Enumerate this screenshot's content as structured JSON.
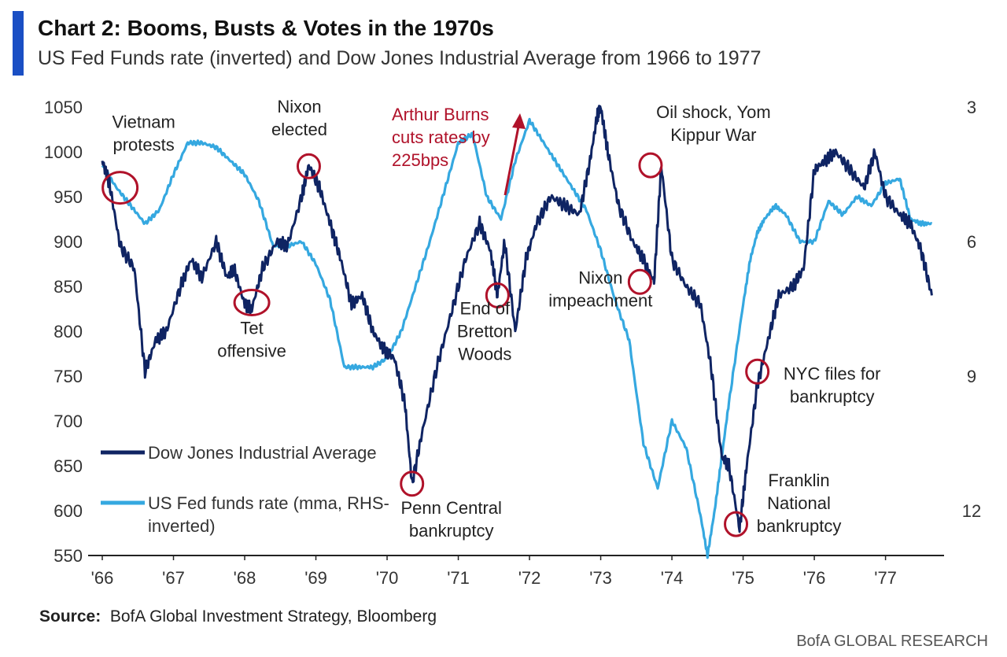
{
  "header": {
    "title": "Chart 2: Booms, Busts & Votes in the 1970s",
    "subtitle": "US Fed Funds rate (inverted) and Dow Jones Industrial Average from 1966 to 1977"
  },
  "colors": {
    "accent": "#1a4fc4",
    "dow": "#0f2463",
    "fed": "#35a8e0",
    "annotation": "#b0122a",
    "axis": "#222222"
  },
  "source": {
    "label": "Source:",
    "text": "BofA Global Investment Strategy, Bloomberg"
  },
  "brand": "BofA GLOBAL RESEARCH",
  "chart_data": {
    "type": "line",
    "title": "Chart 2: Booms, Busts & Votes in the 1970s",
    "x_range": [
      1966.0,
      1977.8
    ],
    "x_ticks": [
      {
        "label": "'66",
        "value": 1966
      },
      {
        "label": "'67",
        "value": 1967
      },
      {
        "label": "'68",
        "value": 1968
      },
      {
        "label": "'69",
        "value": 1969
      },
      {
        "label": "'70",
        "value": 1970
      },
      {
        "label": "'71",
        "value": 1971
      },
      {
        "label": "'72",
        "value": 1972
      },
      {
        "label": "'73",
        "value": 1973
      },
      {
        "label": "'74",
        "value": 1974
      },
      {
        "label": "'75",
        "value": 1975
      },
      {
        "label": "'76",
        "value": 1976
      },
      {
        "label": "'77",
        "value": 1977
      }
    ],
    "left_axis": {
      "ylim": [
        550,
        1050
      ],
      "ticks": [
        550,
        600,
        650,
        700,
        750,
        800,
        850,
        900,
        950,
        1000,
        1050
      ]
    },
    "right_axis": {
      "ylim": [
        3,
        13
      ],
      "inverted": true,
      "ticks": [
        3,
        6,
        9,
        12
      ]
    },
    "series": [
      {
        "name": "Dow Jones Industrial Average",
        "axis": "left",
        "x": [
          1966.0,
          1966.1,
          1966.25,
          1966.45,
          1966.6,
          1966.75,
          1966.9,
          1967.1,
          1967.25,
          1967.4,
          1967.6,
          1967.75,
          1967.85,
          1968.0,
          1968.1,
          1968.25,
          1968.45,
          1968.6,
          1968.8,
          1968.9,
          1969.05,
          1969.2,
          1969.35,
          1969.5,
          1969.65,
          1969.8,
          1969.95,
          1970.1,
          1970.25,
          1970.35,
          1970.5,
          1970.7,
          1970.9,
          1971.1,
          1971.3,
          1971.45,
          1971.55,
          1971.65,
          1971.8,
          1971.95,
          1972.1,
          1972.3,
          1972.5,
          1972.7,
          1972.85,
          1972.95,
          1973.0,
          1973.1,
          1973.25,
          1973.45,
          1973.6,
          1973.75,
          1973.85,
          1974.0,
          1974.2,
          1974.4,
          1974.55,
          1974.7,
          1974.8,
          1974.95,
          1975.05,
          1975.2,
          1975.35,
          1975.5,
          1975.7,
          1975.85,
          1976.0,
          1976.15,
          1976.3,
          1976.5,
          1976.7,
          1976.85,
          1977.0,
          1977.2,
          1977.35,
          1977.5,
          1977.65
        ],
        "y": [
          990,
          965,
          895,
          870,
          755,
          790,
          800,
          850,
          880,
          860,
          900,
          860,
          870,
          830,
          825,
          870,
          900,
          895,
          950,
          985,
          960,
          920,
          880,
          830,
          840,
          800,
          780,
          770,
          720,
          630,
          690,
          760,
          820,
          880,
          920,
          890,
          840,
          900,
          800,
          880,
          920,
          950,
          940,
          930,
          990,
          1040,
          1050,
          1000,
          940,
          900,
          880,
          855,
          985,
          880,
          850,
          830,
          760,
          660,
          650,
          580,
          650,
          740,
          790,
          840,
          850,
          870,
          980,
          990,
          1000,
          980,
          960,
          1000,
          950,
          930,
          920,
          890,
          840
        ]
      },
      {
        "name": "US Fed funds rate (mma, RHS-inverted)",
        "axis": "right",
        "x": [
          1966.0,
          1966.2,
          1966.4,
          1966.6,
          1966.8,
          1967.0,
          1967.2,
          1967.4,
          1967.6,
          1967.8,
          1968.0,
          1968.2,
          1968.4,
          1968.6,
          1968.8,
          1969.0,
          1969.2,
          1969.4,
          1969.6,
          1969.8,
          1970.0,
          1970.2,
          1970.4,
          1970.6,
          1970.8,
          1971.0,
          1971.2,
          1971.4,
          1971.6,
          1971.8,
          1972.0,
          1972.2,
          1972.4,
          1972.6,
          1972.8,
          1973.0,
          1973.2,
          1973.4,
          1973.6,
          1973.8,
          1974.0,
          1974.2,
          1974.4,
          1974.5,
          1974.6,
          1974.7,
          1974.8,
          1975.0,
          1975.1,
          1975.2,
          1975.3,
          1975.45,
          1975.6,
          1975.8,
          1976.0,
          1976.2,
          1976.4,
          1976.6,
          1976.8,
          1977.0,
          1977.2,
          1977.35,
          1977.5,
          1977.65
        ],
        "y": [
          4.3,
          4.8,
          5.2,
          5.6,
          5.3,
          4.5,
          3.8,
          3.8,
          3.9,
          4.2,
          4.5,
          5.1,
          6.1,
          6.1,
          6.0,
          6.5,
          7.3,
          8.8,
          8.8,
          8.8,
          8.6,
          8.0,
          7.0,
          6.0,
          4.9,
          3.8,
          3.6,
          5.0,
          5.5,
          4.2,
          3.3,
          3.8,
          4.3,
          4.8,
          5.3,
          6.2,
          7.3,
          8.2,
          10.5,
          11.5,
          10.0,
          10.6,
          12.1,
          13.0,
          12.0,
          10.8,
          9.6,
          7.4,
          6.4,
          5.8,
          5.5,
          5.2,
          5.4,
          6.0,
          6.0,
          5.1,
          5.4,
          5.0,
          5.2,
          4.7,
          4.6,
          5.5,
          5.6,
          5.6
        ]
      }
    ],
    "legend": [
      {
        "label": "Dow Jones Industrial Average",
        "series": 0
      },
      {
        "label": "US Fed funds rate (mma, RHS-",
        "label2": "inverted)",
        "series": 1
      }
    ],
    "legend_placement": "bottom-left",
    "events": [
      {
        "lines": [
          "Vietnam",
          "protests"
        ],
        "x": 1966.25,
        "y": 960
      },
      {
        "lines": [
          "Tet",
          "offensive"
        ],
        "x": 1968.1,
        "y": 832
      },
      {
        "lines": [
          "Nixon",
          "elected"
        ],
        "x": 1968.9,
        "y": 984
      },
      {
        "lines": [
          "Penn Central",
          "bankruptcy"
        ],
        "x": 1970.35,
        "y": 630
      },
      {
        "lines": [
          "End of",
          "Bretton",
          "Woods"
        ],
        "x": 1971.55,
        "y": 840
      },
      {
        "lines": [
          "Nixon",
          "impeachment"
        ],
        "x": 1973.55,
        "y": 855
      },
      {
        "lines": [
          "Oil shock, Yom",
          "Kippur War"
        ],
        "x": 1973.7,
        "y": 985
      },
      {
        "lines": [
          "Franklin",
          "National",
          "bankruptcy"
        ],
        "x": 1974.9,
        "y": 585
      },
      {
        "lines": [
          "NYC files for",
          "bankruptcy"
        ],
        "x": 1975.2,
        "y": 755
      }
    ],
    "callout": {
      "lines": [
        "Arthur Burns",
        "cuts rates by",
        "225bps"
      ]
    }
  }
}
